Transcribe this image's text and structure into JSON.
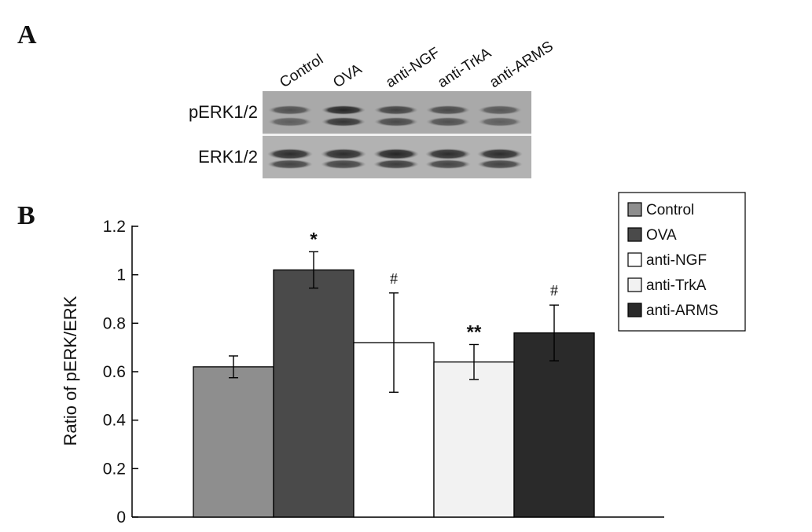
{
  "panels": {
    "a_label": "A",
    "b_label": "B"
  },
  "blot": {
    "lane_labels": [
      "Control",
      "OVA",
      "anti-NGF",
      "anti-TrkA",
      "anti-ARMS"
    ],
    "row_labels": [
      "pERK1/2",
      "ERK1/2"
    ]
  },
  "chart_data": {
    "type": "bar",
    "categories": [
      "Control",
      "OVA",
      "anti-NGF",
      "anti-TrkA",
      "anti-ARMS"
    ],
    "values": [
      0.62,
      1.02,
      0.72,
      0.64,
      0.76
    ],
    "errors": [
      0.045,
      0.075,
      0.205,
      0.072,
      0.115
    ],
    "significance": [
      "",
      "*",
      "#",
      "**",
      "#"
    ],
    "colors": [
      "#8e8e8e",
      "#4a4a4a",
      "#ffffff",
      "#f2f2f2",
      "#2a2a2a"
    ],
    "title": "",
    "xlabel": "",
    "ylabel": "Ratio of pERK/ERK",
    "ylim": [
      0,
      1.2
    ],
    "yticks": [
      "0",
      "0.2",
      "0.4",
      "0.6",
      "0.8",
      "1",
      "1.2"
    ],
    "legend": {
      "placement": "top-right",
      "entries": [
        "Control",
        "OVA",
        "anti-NGF",
        "anti-TrkA",
        "anti-ARMS"
      ]
    },
    "grid": false
  }
}
